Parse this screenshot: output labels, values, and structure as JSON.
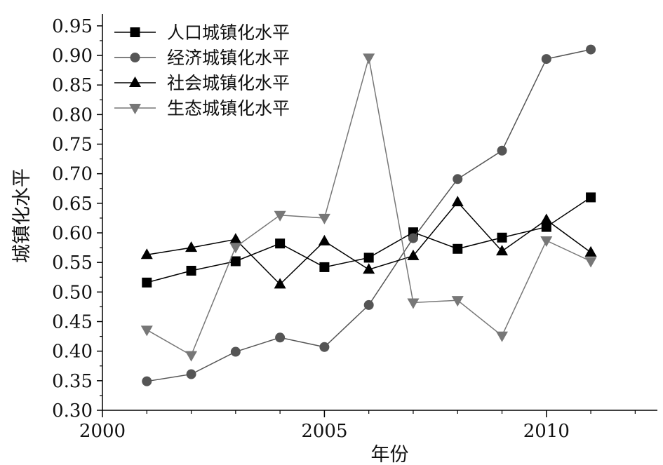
{
  "chart_data": {
    "type": "line",
    "xlabel": "年份",
    "ylabel": "城镇化水平",
    "xlim": [
      2000,
      2012.5
    ],
    "ylim": [
      0.3,
      0.97
    ],
    "x_ticks": [
      2000,
      2005,
      2010
    ],
    "y_ticks": [
      0.3,
      0.35,
      0.4,
      0.45,
      0.5,
      0.55,
      0.6,
      0.65,
      0.7,
      0.75,
      0.8,
      0.85,
      0.9,
      0.95
    ],
    "legend_position": "top-left",
    "grid": false,
    "x": [
      2001,
      2002,
      2003,
      2004,
      2005,
      2006,
      2007,
      2008,
      2009,
      2010,
      2011
    ],
    "series": [
      {
        "name": "人口城镇化水平",
        "marker": "square",
        "color": "#000000",
        "values": [
          0.516,
          0.536,
          0.552,
          0.582,
          0.542,
          0.558,
          0.601,
          0.573,
          0.592,
          0.61,
          0.66
        ]
      },
      {
        "name": "经济城镇化水平",
        "marker": "circle",
        "color": "#555555",
        "values": [
          0.349,
          0.361,
          0.399,
          0.423,
          0.407,
          0.478,
          0.591,
          0.691,
          0.739,
          0.894,
          0.91
        ]
      },
      {
        "name": "社会城镇化水平",
        "marker": "triangle-up",
        "color": "#000000",
        "values": [
          0.563,
          0.575,
          0.589,
          0.513,
          0.586,
          0.538,
          0.561,
          0.652,
          0.569,
          0.622,
          0.567
        ]
      },
      {
        "name": "生态城镇化水平",
        "marker": "triangle-down",
        "color": "#777777",
        "values": [
          0.436,
          0.393,
          0.576,
          0.63,
          0.625,
          0.896,
          0.482,
          0.486,
          0.426,
          0.587,
          0.552
        ]
      }
    ]
  }
}
